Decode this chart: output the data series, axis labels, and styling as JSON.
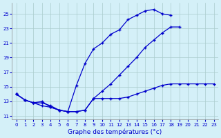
{
  "title": "Graphe des températures (°c)",
  "background_color": "#d4f0f8",
  "grid_color": "#aacccc",
  "line_color": "#0000cc",
  "xlim": [
    -0.5,
    23.5
  ],
  "ylim": [
    10.5,
    26.5
  ],
  "yticks": [
    11,
    13,
    15,
    17,
    19,
    21,
    23,
    25
  ],
  "xticks": [
    0,
    1,
    2,
    3,
    4,
    5,
    6,
    7,
    8,
    9,
    10,
    11,
    12,
    13,
    14,
    15,
    16,
    17,
    18,
    19,
    20,
    21,
    22,
    23
  ],
  "line1_y": [
    14.0,
    13.2,
    12.8,
    13.0,
    12.2,
    11.8,
    11.6,
    15.2,
    18.2,
    20.2,
    21.0,
    22.2,
    22.8,
    24.2,
    24.8,
    25.4,
    25.6,
    25.0,
    24.8,
    null,
    null,
    null,
    null,
    null
  ],
  "line2_y": [
    14.0,
    13.2,
    12.8,
    12.4,
    12.2,
    11.8,
    11.6,
    11.6,
    11.8,
    13.4,
    14.4,
    15.4,
    16.6,
    17.8,
    19.0,
    20.4,
    21.4,
    22.4,
    23.2,
    23.2,
    null,
    null,
    null,
    null
  ],
  "line3_y": [
    14.0,
    13.2,
    12.8,
    12.8,
    12.4,
    11.8,
    11.6,
    11.6,
    11.8,
    13.4,
    13.4,
    13.4,
    13.4,
    13.6,
    14.0,
    14.4,
    14.8,
    15.2,
    15.4,
    15.4,
    15.4,
    15.4,
    15.4,
    15.4
  ]
}
